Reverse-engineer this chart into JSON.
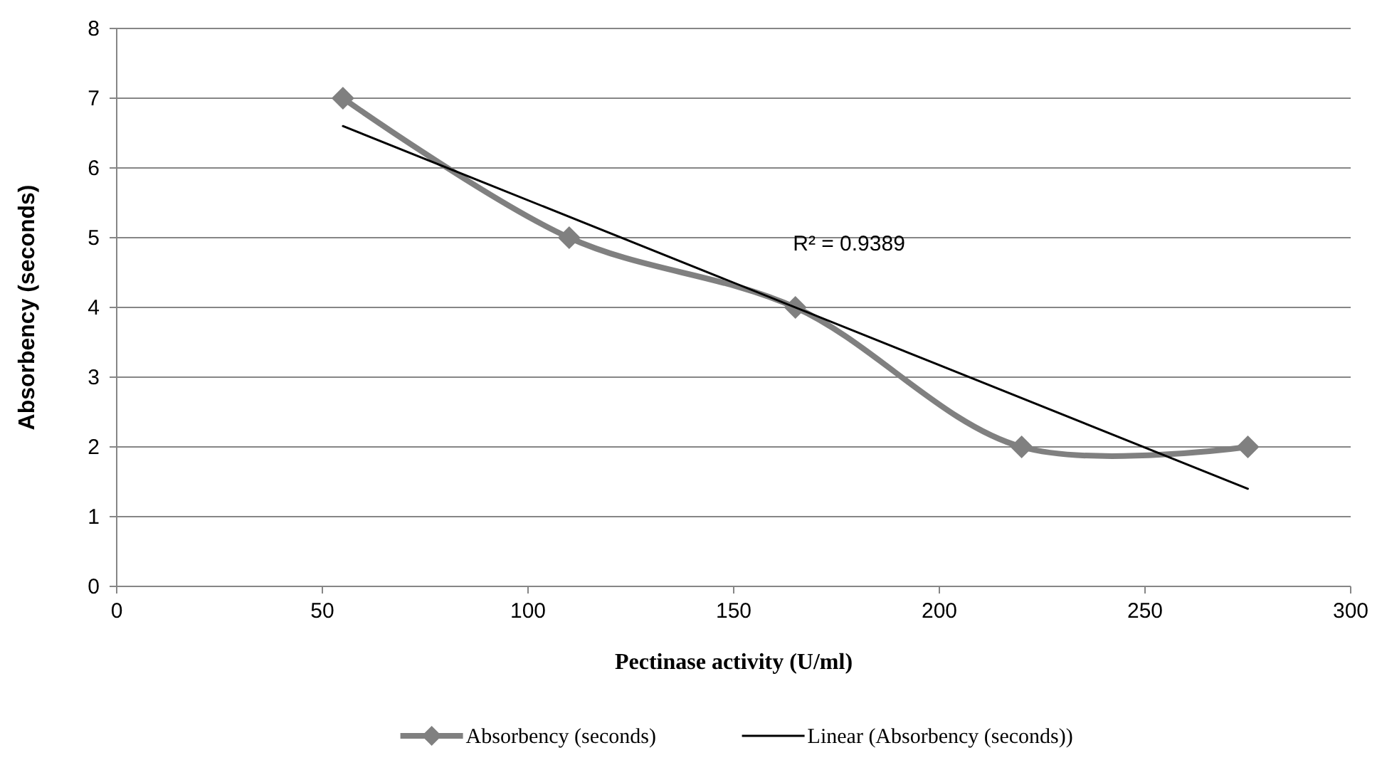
{
  "chart_data": {
    "type": "line",
    "xlabel": "Pectinase activity (U/ml)",
    "ylabel": "Absorbency (seconds)",
    "x": [
      55,
      110,
      165,
      220,
      275
    ],
    "series": [
      {
        "name": "Absorbency (seconds)",
        "color": "#808080",
        "values": [
          7,
          5,
          4,
          2,
          2
        ],
        "marker": "diamond"
      },
      {
        "name": "Linear (Absorbency (seconds))",
        "color": "#000000",
        "type": "line",
        "x": [
          55,
          275
        ],
        "values": [
          6.6,
          1.4
        ],
        "marker": "none"
      }
    ],
    "xlim": [
      0,
      300
    ],
    "xticks": [
      0,
      50,
      100,
      150,
      200,
      250,
      300
    ],
    "ylim": [
      0,
      8
    ],
    "yticks": [
      0,
      1,
      2,
      3,
      4,
      5,
      6,
      7,
      8
    ],
    "grid": "y",
    "legend": "bottom",
    "line_style": "solid",
    "annotations": [
      "R² = 0.9389"
    ]
  }
}
